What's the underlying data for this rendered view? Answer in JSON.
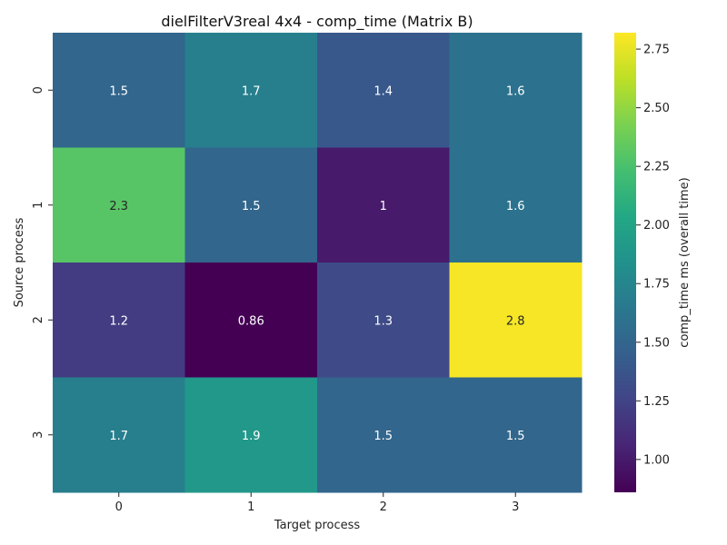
{
  "chart_data": {
    "type": "heatmap",
    "title": "dielFilterV3real 4x4 - comp_time (Matrix B)",
    "xlabel": "Target process",
    "ylabel": "Source process",
    "x_categories": [
      "0",
      "1",
      "2",
      "3"
    ],
    "y_categories": [
      "0",
      "1",
      "2",
      "3"
    ],
    "values": [
      [
        1.5,
        1.7,
        1.4,
        1.6
      ],
      [
        2.3,
        1.5,
        1.0,
        1.6
      ],
      [
        1.2,
        0.86,
        1.3,
        2.8
      ],
      [
        1.7,
        1.9,
        1.5,
        1.5
      ]
    ],
    "value_labels": [
      [
        "1.5",
        "1.7",
        "1.4",
        "1.6"
      ],
      [
        "2.3",
        "1.5",
        "1",
        "1.6"
      ],
      [
        "1.2",
        "0.86",
        "1.3",
        "2.8"
      ],
      [
        "1.7",
        "1.9",
        "1.5",
        "1.5"
      ]
    ],
    "colormap": "viridis",
    "colorbar": {
      "label": "comp_time ms (overall time)",
      "range": [
        0.86,
        2.82
      ],
      "ticks": [
        1.0,
        1.25,
        1.5,
        1.75,
        2.0,
        2.25,
        2.5,
        2.75
      ],
      "tick_labels": [
        "1.00",
        "1.25",
        "1.50",
        "1.75",
        "2.00",
        "2.25",
        "2.50",
        "2.75"
      ]
    },
    "grid": false
  }
}
